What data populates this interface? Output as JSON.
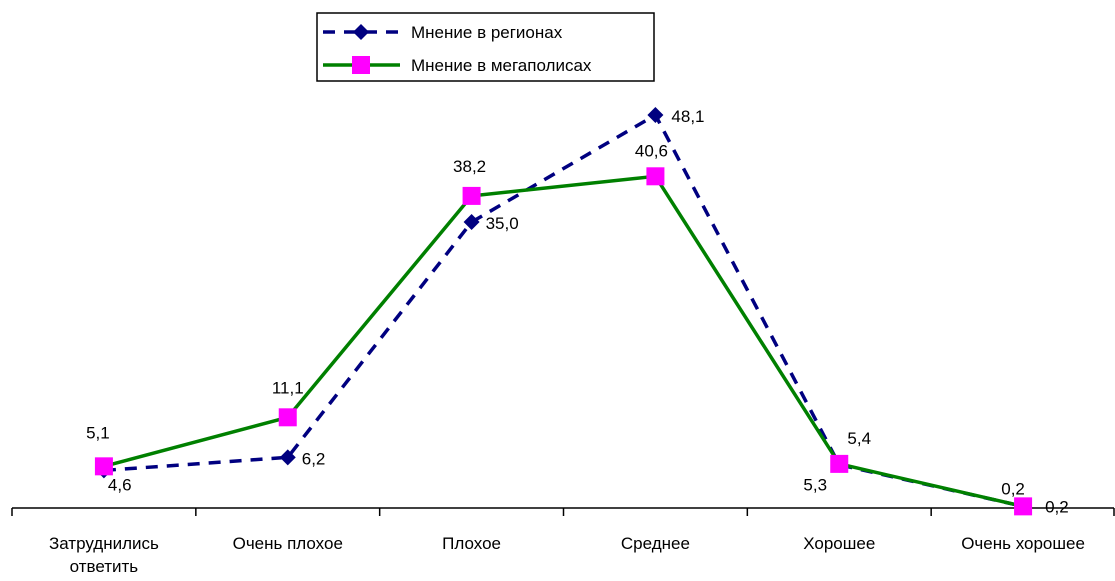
{
  "chart_data": {
    "type": "line",
    "title": "",
    "xlabel": "",
    "ylabel": "",
    "ylim": [
      0,
      50
    ],
    "grid": false,
    "legend_position": "top-center",
    "categories": [
      "Затруднились ответить",
      "Очень плохое",
      "Плохое",
      "Среднее",
      "Хорошее",
      "Очень хорошее"
    ],
    "category_lines": [
      [
        "Затруднились",
        "ответить"
      ],
      [
        "Очень плохое"
      ],
      [
        "Плохое"
      ],
      [
        "Среднее"
      ],
      [
        "Хорошее"
      ],
      [
        "Очень хорошее"
      ]
    ],
    "series": [
      {
        "name": "Мнение в регионах",
        "values": [
          4.6,
          6.2,
          35.0,
          48.1,
          5.3,
          0.2
        ],
        "labels": [
          "4,6",
          "6,2",
          "35,0",
          "48,1",
          "5,3",
          "0,2"
        ],
        "color": "#000080",
        "line_style": "dashed",
        "marker": "diamond"
      },
      {
        "name": "Мнение в мегаполисах",
        "values": [
          5.1,
          11.1,
          38.2,
          40.6,
          5.4,
          0.2
        ],
        "labels": [
          "5,1",
          "11,1",
          "38,2",
          "40,6",
          "5,4",
          "0,2"
        ],
        "color": "#008000",
        "marker_color": "#FF00FF",
        "line_style": "solid",
        "marker": "square"
      }
    ]
  }
}
